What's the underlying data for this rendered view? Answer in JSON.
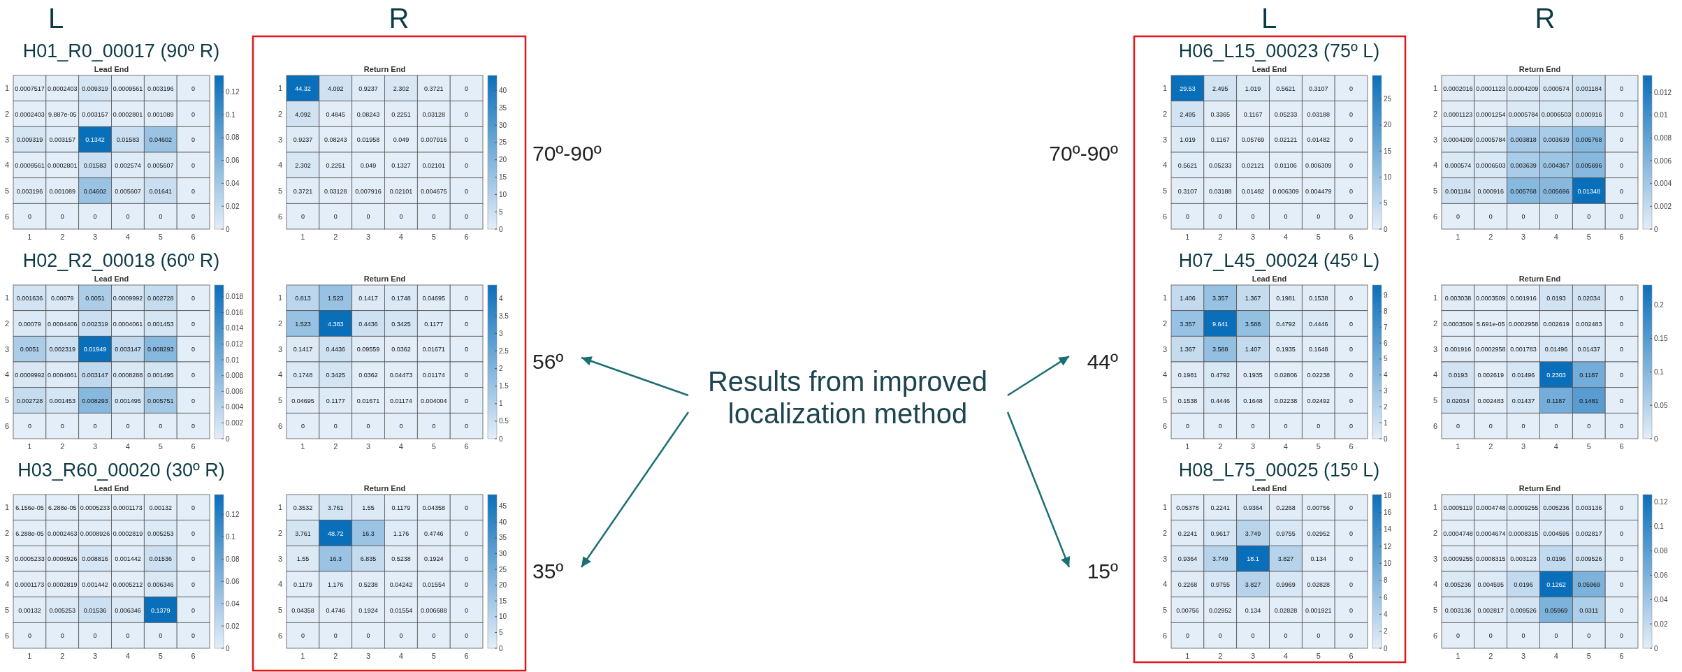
{
  "chart_data": [
    {
      "type": "heatmap",
      "data_labels": true,
      "subtitle": "H01_R0_00017 (90º R)",
      "title": "Lead End",
      "annotations": [
        "L"
      ],
      "categories": [
        "1",
        "2",
        "3",
        "4",
        "5",
        "6"
      ],
      "y_categories": [
        "1",
        "2",
        "3",
        "4",
        "5",
        "6"
      ],
      "clim": [
        0,
        0.1342
      ],
      "cticks": [
        0,
        0.02,
        0.04,
        0.06,
        0.08,
        0.1,
        0.12
      ],
      "cells": [
        [
          0.0007517,
          0.0002403,
          0.009319,
          0.0009561,
          0.003196,
          0
        ],
        [
          0.0002403,
          9.887e-05,
          0.003157,
          0.0002801,
          0.001089,
          0
        ],
        [
          0.009319,
          0.003157,
          0.1342,
          0.01583,
          0.04602,
          0
        ],
        [
          0.0009561,
          0.0002801,
          0.01583,
          0.002574,
          0.005607,
          0
        ],
        [
          0.003196,
          0.001089,
          0.04602,
          0.005607,
          0.01641,
          0
        ],
        [
          0,
          0,
          0,
          0,
          0,
          0
        ]
      ]
    },
    {
      "type": "heatmap",
      "data_labels": true,
      "title": "Return End",
      "annotations": [
        "R",
        "70º-90º"
      ],
      "categories": [
        "1",
        "2",
        "3",
        "4",
        "5",
        "6"
      ],
      "y_categories": [
        "1",
        "2",
        "3",
        "4",
        "5",
        "6"
      ],
      "clim": [
        0,
        44.32
      ],
      "cticks": [
        0,
        5,
        10,
        15,
        20,
        25,
        30,
        35,
        40
      ],
      "cells": [
        [
          44.32,
          4.092,
          0.9237,
          2.302,
          0.3721,
          0
        ],
        [
          4.092,
          0.4845,
          0.08243,
          0.2251,
          0.03128,
          0
        ],
        [
          0.9237,
          0.08243,
          0.01958,
          0.049,
          0.007916,
          0
        ],
        [
          2.302,
          0.2251,
          0.049,
          0.1327,
          0.02101,
          0
        ],
        [
          0.3721,
          0.03128,
          0.007916,
          0.02101,
          0.004675,
          0
        ],
        [
          0,
          0,
          0,
          0,
          0,
          0
        ]
      ]
    },
    {
      "type": "heatmap",
      "data_labels": true,
      "subtitle": "H02_R2_00018 (60º R)",
      "title": "Lead End",
      "categories": [
        "1",
        "2",
        "3",
        "4",
        "5",
        "6"
      ],
      "y_categories": [
        "1",
        "2",
        "3",
        "4",
        "5",
        "6"
      ],
      "clim": [
        0,
        0.01949
      ],
      "cticks": [
        0,
        0.002,
        0.004,
        0.006,
        0.008,
        0.01,
        0.012,
        0.014,
        0.016,
        0.018
      ],
      "cells": [
        [
          0.001636,
          0.00079,
          0.0051,
          0.0009992,
          0.002728,
          0
        ],
        [
          0.00079,
          0.0004406,
          0.002319,
          0.0004061,
          0.001453,
          0
        ],
        [
          0.0051,
          0.002319,
          0.01949,
          0.003147,
          0.008293,
          0
        ],
        [
          0.0009992,
          0.0004061,
          0.003147,
          0.0008288,
          0.001495,
          0
        ],
        [
          0.002728,
          0.001453,
          0.008293,
          0.001495,
          0.005751,
          0
        ],
        [
          0,
          0,
          0,
          0,
          0,
          0
        ]
      ]
    },
    {
      "type": "heatmap",
      "data_labels": true,
      "title": "Return End",
      "annotations": [
        "56º",
        "Results from improved localization method"
      ],
      "categories": [
        "1",
        "2",
        "3",
        "4",
        "5",
        "6"
      ],
      "y_categories": [
        "1",
        "2",
        "3",
        "4",
        "5",
        "6"
      ],
      "clim": [
        0,
        4.383
      ],
      "cticks": [
        0,
        0.5,
        1,
        1.5,
        2,
        2.5,
        3,
        3.5,
        4
      ],
      "cells": [
        [
          0.813,
          1.523,
          0.1417,
          0.1748,
          0.04695,
          0
        ],
        [
          1.523,
          4.383,
          0.4436,
          0.3425,
          0.1177,
          0
        ],
        [
          0.1417,
          0.4436,
          0.09559,
          0.0362,
          0.01671,
          0
        ],
        [
          0.1748,
          0.3425,
          0.0362,
          0.04473,
          0.01174,
          0
        ],
        [
          0.04695,
          0.1177,
          0.01671,
          0.01174,
          0.004004,
          0
        ],
        [
          0,
          0,
          0,
          0,
          0,
          0
        ]
      ]
    },
    {
      "type": "heatmap",
      "data_labels": true,
      "subtitle": "H03_R60_00020 (30º R)",
      "title": "Lead End",
      "categories": [
        "1",
        "2",
        "3",
        "4",
        "5",
        "6"
      ],
      "y_categories": [
        "1",
        "2",
        "3",
        "4",
        "5",
        "6"
      ],
      "clim": [
        0,
        0.1379
      ],
      "cticks": [
        0,
        0.02,
        0.04,
        0.06,
        0.08,
        0.1,
        0.12
      ],
      "cells": [
        [
          6.156e-05,
          6.288e-05,
          0.0005233,
          0.0001173,
          0.00132,
          0
        ],
        [
          6.288e-05,
          0.0002463,
          0.0008926,
          0.0002819,
          0.005253,
          0
        ],
        [
          0.0005233,
          0.0008926,
          0.008816,
          0.001442,
          0.01536,
          0
        ],
        [
          0.0001173,
          0.0002819,
          0.001442,
          0.0005212,
          0.006346,
          0
        ],
        [
          0.00132,
          0.005253,
          0.01536,
          0.006346,
          0.1379,
          0
        ],
        [
          0,
          0,
          0,
          0,
          0,
          0
        ]
      ]
    },
    {
      "type": "heatmap",
      "data_labels": true,
      "title": "Return End",
      "annotations": [
        "35º"
      ],
      "categories": [
        "1",
        "2",
        "3",
        "4",
        "5",
        "6"
      ],
      "y_categories": [
        "1",
        "2",
        "3",
        "4",
        "5",
        "6"
      ],
      "clim": [
        0,
        48.72
      ],
      "cticks": [
        0,
        5,
        10,
        15,
        20,
        25,
        30,
        35,
        40,
        45
      ],
      "cells": [
        [
          0.3532,
          3.761,
          1.55,
          0.1179,
          0.04358,
          0
        ],
        [
          3.761,
          48.72,
          16.3,
          1.176,
          0.4746,
          0
        ],
        [
          1.55,
          16.3,
          6.835,
          0.5238,
          0.1924,
          0
        ],
        [
          0.1179,
          1.176,
          0.5238,
          0.04242,
          0.01554,
          0
        ],
        [
          0.04358,
          0.4746,
          0.1924,
          0.01554,
          0.006688,
          0
        ],
        [
          0,
          0,
          0,
          0,
          0,
          0
        ]
      ]
    },
    {
      "type": "heatmap",
      "data_labels": true,
      "subtitle": "H06_L15_00023 (75º L)",
      "title": "Lead End",
      "annotations": [
        "L",
        "70º-90º"
      ],
      "categories": [
        "1",
        "2",
        "3",
        "4",
        "5",
        "6"
      ],
      "y_categories": [
        "1",
        "2",
        "3",
        "4",
        "5",
        "6"
      ],
      "clim": [
        0,
        29.53
      ],
      "cticks": [
        0,
        5,
        10,
        15,
        20,
        25
      ],
      "cells": [
        [
          29.53,
          2.495,
          1.019,
          0.5621,
          0.3107,
          0
        ],
        [
          2.495,
          0.3365,
          0.1167,
          0.05233,
          0.03188,
          0
        ],
        [
          1.019,
          0.1167,
          0.05769,
          0.02121,
          0.01482,
          0
        ],
        [
          0.5621,
          0.05233,
          0.02121,
          0.01106,
          0.006309,
          0
        ],
        [
          0.3107,
          0.03188,
          0.01482,
          0.006309,
          0.004479,
          0
        ],
        [
          0,
          0,
          0,
          0,
          0,
          0
        ]
      ]
    },
    {
      "type": "heatmap",
      "data_labels": true,
      "title": "Return End",
      "annotations": [
        "R"
      ],
      "categories": [
        "1",
        "2",
        "3",
        "4",
        "5",
        "6"
      ],
      "y_categories": [
        "1",
        "2",
        "3",
        "4",
        "5",
        "6"
      ],
      "clim": [
        0,
        0.01348
      ],
      "cticks": [
        0,
        0.002,
        0.004,
        0.006,
        0.008,
        0.01,
        0.012
      ],
      "cells": [
        [
          0.0002016,
          0.0001123,
          0.0004209,
          0.000574,
          0.001184,
          0
        ],
        [
          0.0001123,
          0.0001254,
          0.0005784,
          0.0006503,
          0.000916,
          0
        ],
        [
          0.0004209,
          0.0005784,
          0.003818,
          0.003639,
          0.005768,
          0
        ],
        [
          0.000574,
          0.0006503,
          0.003639,
          0.004367,
          0.005696,
          0
        ],
        [
          0.001184,
          0.000916,
          0.005768,
          0.005696,
          0.01348,
          0
        ],
        [
          0,
          0,
          0,
          0,
          0,
          0
        ]
      ]
    },
    {
      "type": "heatmap",
      "data_labels": true,
      "subtitle": "H07_L45_00024 (45º L)",
      "title": "Lead End",
      "annotations": [
        "44º"
      ],
      "categories": [
        "1",
        "2",
        "3",
        "4",
        "5",
        "6"
      ],
      "y_categories": [
        "1",
        "2",
        "3",
        "4",
        "5",
        "6"
      ],
      "clim": [
        0,
        9.641
      ],
      "cticks": [
        0,
        1,
        2,
        3,
        4,
        5,
        6,
        7,
        8,
        9
      ],
      "cells": [
        [
          1.406,
          3.357,
          1.367,
          0.1981,
          0.1538,
          0
        ],
        [
          3.357,
          9.641,
          3.588,
          0.4792,
          0.4446,
          0
        ],
        [
          1.367,
          3.588,
          1.407,
          0.1935,
          0.1648,
          0
        ],
        [
          0.1981,
          0.4792,
          0.1935,
          0.02806,
          0.02238,
          0
        ],
        [
          0.1538,
          0.4446,
          0.1648,
          0.02238,
          0.02492,
          0
        ],
        [
          0,
          0,
          0,
          0,
          0,
          0
        ]
      ]
    },
    {
      "type": "heatmap",
      "data_labels": true,
      "title": "Return End",
      "categories": [
        "1",
        "2",
        "3",
        "4",
        "5",
        "6"
      ],
      "y_categories": [
        "1",
        "2",
        "3",
        "4",
        "5",
        "6"
      ],
      "clim": [
        0,
        0.2303
      ],
      "cticks": [
        0,
        0.05,
        0.1,
        0.15,
        0.2
      ],
      "cells": [
        [
          0.003038,
          0.0003509,
          0.001916,
          0.0193,
          0.02034,
          0
        ],
        [
          0.0003509,
          5.691e-05,
          0.0002958,
          0.002619,
          0.002483,
          0
        ],
        [
          0.001916,
          0.0002958,
          0.001783,
          0.01496,
          0.01437,
          0
        ],
        [
          0.0193,
          0.002619,
          0.01496,
          0.2303,
          0.1187,
          0
        ],
        [
          0.02034,
          0.002483,
          0.01437,
          0.1187,
          0.1481,
          0
        ],
        [
          0,
          0,
          0,
          0,
          0,
          0
        ]
      ]
    },
    {
      "type": "heatmap",
      "data_labels": true,
      "subtitle": "H08_L75_00025 (15º L)",
      "title": "Lead End",
      "annotations": [
        "15º"
      ],
      "categories": [
        "1",
        "2",
        "3",
        "4",
        "5",
        "6"
      ],
      "y_categories": [
        "1",
        "2",
        "3",
        "4",
        "5",
        "6"
      ],
      "clim": [
        0,
        18.1
      ],
      "cticks": [
        0,
        2,
        4,
        6,
        8,
        10,
        12,
        14,
        16,
        18
      ],
      "cells": [
        [
          0.05378,
          0.2241,
          0.9364,
          0.2268,
          0.00756,
          0
        ],
        [
          0.2241,
          0.9617,
          3.749,
          0.9755,
          0.02952,
          0
        ],
        [
          0.9364,
          3.749,
          18.1,
          3.827,
          0.134,
          0
        ],
        [
          0.2268,
          0.9755,
          3.827,
          0.9969,
          0.02828,
          0
        ],
        [
          0.00756,
          0.02952,
          0.134,
          0.02828,
          0.001921,
          0
        ],
        [
          0,
          0,
          0,
          0,
          0,
          0
        ]
      ]
    },
    {
      "type": "heatmap",
      "data_labels": true,
      "title": "Return End",
      "categories": [
        "1",
        "2",
        "3",
        "4",
        "5",
        "6"
      ],
      "y_categories": [
        "1",
        "2",
        "3",
        "4",
        "5",
        "6"
      ],
      "clim": [
        0,
        0.1262
      ],
      "cticks": [
        0,
        0.02,
        0.04,
        0.06,
        0.08,
        0.1,
        0.12
      ],
      "cells": [
        [
          0.0005119,
          0.0004748,
          0.0009255,
          0.005236,
          0.003136,
          0
        ],
        [
          0.0004748,
          0.0004674,
          0.0008315,
          0.004595,
          0.002817,
          0
        ],
        [
          0.0009255,
          0.0008315,
          0.003123,
          0.0196,
          0.009526,
          0
        ],
        [
          0.005236,
          0.004595,
          0.0196,
          0.1262,
          0.05969,
          0
        ],
        [
          0.003136,
          0.002817,
          0.009526,
          0.05969,
          0.0311,
          0
        ],
        [
          0,
          0,
          0,
          0,
          0,
          0
        ]
      ]
    }
  ]
}
